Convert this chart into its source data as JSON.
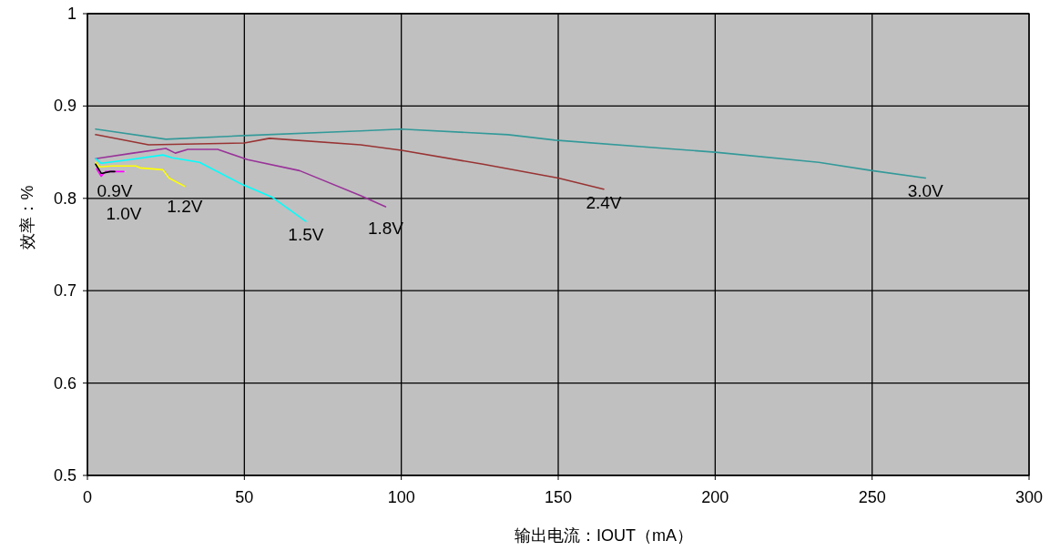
{
  "chart_data": {
    "type": "line",
    "xlabel": "输出电流：IOUT（mA）",
    "ylabel": "效率：%",
    "xlim": [
      0,
      300
    ],
    "xticks": [
      0,
      50,
      100,
      150,
      200,
      250,
      300
    ],
    "ylim": [
      0.5,
      1
    ],
    "yticks": [
      0.5,
      0.6,
      0.7,
      0.8,
      0.9,
      1
    ],
    "grid": true,
    "series": [
      {
        "name": "0.9V",
        "color": "#000000",
        "x": [
          2.6,
          4.4,
          7.3,
          8.7
        ],
        "values": [
          0.837,
          0.827,
          0.829,
          0.829
        ]
      },
      {
        "name": "1.0V",
        "color": "#ff00ff",
        "x": [
          2.9,
          4.4,
          5.8,
          11.6
        ],
        "values": [
          0.832,
          0.824,
          0.829,
          0.829
        ]
      },
      {
        "name": "1.2V",
        "color": "#ffff00",
        "x": [
          2.6,
          3.8,
          7.8,
          15.4,
          16.8,
          24,
          26,
          31
        ],
        "values": [
          0.839,
          0.834,
          0.835,
          0.835,
          0.833,
          0.831,
          0.822,
          0.813
        ]
      },
      {
        "name": "1.5V",
        "color": "#00ffff",
        "x": [
          2.6,
          4.4,
          13.6,
          24,
          27,
          35.7,
          49.3,
          59,
          69.6
        ],
        "values": [
          0.843,
          0.838,
          0.842,
          0.847,
          0.844,
          0.839,
          0.815,
          0.801,
          0.775
        ]
      },
      {
        "name": "1.8V",
        "color": "#993399",
        "x": [
          2.6,
          14.5,
          25,
          28,
          32,
          41.5,
          51,
          67.6,
          87,
          95
        ],
        "values": [
          0.843,
          0.849,
          0.854,
          0.849,
          0.853,
          0.853,
          0.842,
          0.83,
          0.803,
          0.791
        ]
      },
      {
        "name": "2.4V",
        "color": "#993333",
        "x": [
          2.6,
          19.5,
          50,
          58,
          87,
          100,
          126,
          150,
          164.5
        ],
        "values": [
          0.869,
          0.858,
          0.86,
          0.865,
          0.858,
          0.852,
          0.837,
          0.822,
          0.81
        ]
      },
      {
        "name": "3.0V",
        "color": "#339999",
        "x": [
          2.6,
          25,
          50,
          87,
          100,
          134,
          149,
          184,
          200,
          233,
          250,
          267
        ],
        "values": [
          0.875,
          0.864,
          0.868,
          0.873,
          0.875,
          0.869,
          0.863,
          0.854,
          0.85,
          0.839,
          0.83,
          0.822
        ]
      }
    ]
  }
}
